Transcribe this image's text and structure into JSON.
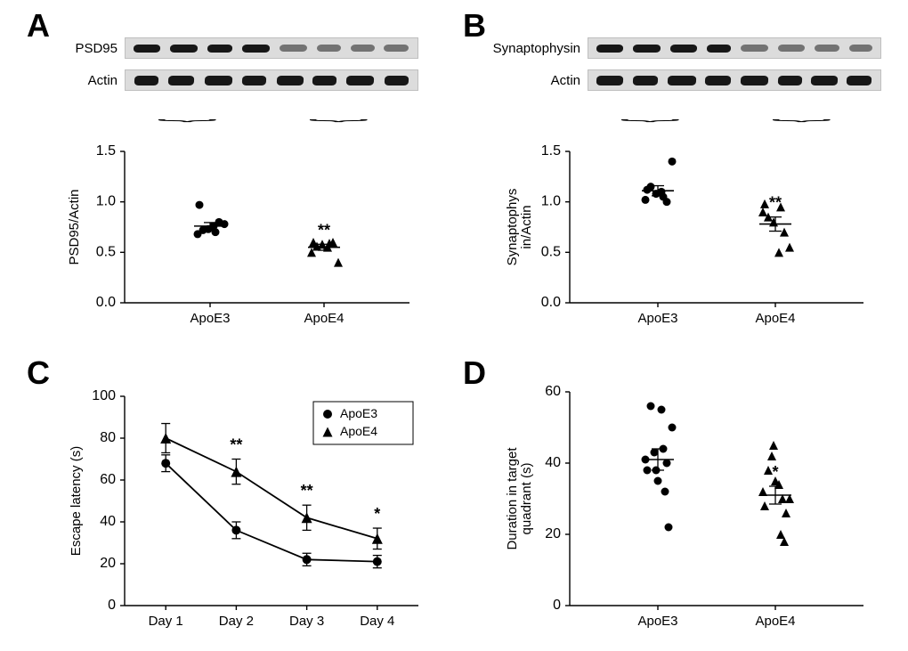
{
  "labels": {
    "A": "A",
    "B": "B",
    "C": "C",
    "D": "D"
  },
  "blots": {
    "A": {
      "top_label": "PSD95",
      "bottom_label": "Actin"
    },
    "B": {
      "top_label": "Synaptophysin",
      "bottom_label": "Actin"
    }
  },
  "groups": {
    "left": "ApoE3",
    "right": "ApoE4"
  },
  "A_chart": {
    "type": "scatter",
    "ylabel": "PSD95/Actin",
    "ylim": [
      0.0,
      1.5
    ],
    "ytick_step": 0.5,
    "bar_width": 0.7,
    "colors": {
      "ApoE3": "#000000",
      "ApoE4": "#000000"
    },
    "background_color": "#ffffff",
    "label_fontsize": 15,
    "data": {
      "ApoE3": {
        "points": [
          0.68,
          0.72,
          0.73,
          0.76,
          0.8,
          0.78,
          0.97,
          0.7
        ],
        "mean": 0.76,
        "sem": 0.035,
        "marker": "circle"
      },
      "ApoE4": {
        "points": [
          0.5,
          0.56,
          0.58,
          0.55,
          0.6,
          0.4,
          0.6,
          0.59
        ],
        "mean": 0.55,
        "sem": 0.03,
        "marker": "triangle"
      }
    },
    "sig": "**"
  },
  "B_chart": {
    "type": "scatter",
    "ylabel": "Synaptophys\nin/Actin",
    "ylim": [
      0.0,
      1.5
    ],
    "ytick_step": 0.5,
    "data": {
      "ApoE3": {
        "points": [
          1.02,
          1.15,
          1.08,
          1.1,
          1.0,
          1.4,
          1.12,
          1.05
        ],
        "mean": 1.11,
        "sem": 0.05,
        "marker": "circle"
      },
      "ApoE4": {
        "points": [
          0.9,
          0.85,
          0.8,
          0.5,
          0.7,
          0.55,
          0.98,
          0.95
        ],
        "mean": 0.78,
        "sem": 0.07,
        "marker": "triangle"
      }
    },
    "sig": "**"
  },
  "C_chart": {
    "type": "line",
    "ylabel": "Escape latency (s)",
    "ylim": [
      0,
      100
    ],
    "ytick_step": 20,
    "categories": [
      "Day 1",
      "Day 2",
      "Day 3",
      "Day 4"
    ],
    "series": {
      "ApoE3": {
        "vals": [
          68,
          36,
          22,
          21
        ],
        "sem": [
          4,
          4,
          3,
          3
        ],
        "marker": "circle"
      },
      "ApoE4": {
        "vals": [
          80,
          64,
          42,
          32
        ],
        "sem": [
          7,
          6,
          6,
          5
        ],
        "marker": "triangle"
      }
    },
    "sig": {
      "Day 2": "**",
      "Day 3": "**",
      "Day 4": "*"
    }
  },
  "D_chart": {
    "type": "scatter",
    "ylabel": "Duration in target\nquadrant (s)",
    "ylim": [
      0,
      60
    ],
    "ytick_step": 20,
    "data": {
      "ApoE3": {
        "points": [
          41,
          56,
          38,
          55,
          40,
          50,
          38,
          44,
          43,
          22,
          35,
          32
        ],
        "mean": 41,
        "sem": 3,
        "marker": "circle"
      },
      "ApoE4": {
        "points": [
          32,
          38,
          45,
          34,
          18,
          30,
          28,
          20,
          42,
          26,
          35,
          30
        ],
        "mean": 31,
        "sem": 2.5,
        "marker": "triangle"
      }
    },
    "sig": "*"
  },
  "legend": {
    "items": [
      "ApoE3",
      "ApoE4"
    ]
  }
}
